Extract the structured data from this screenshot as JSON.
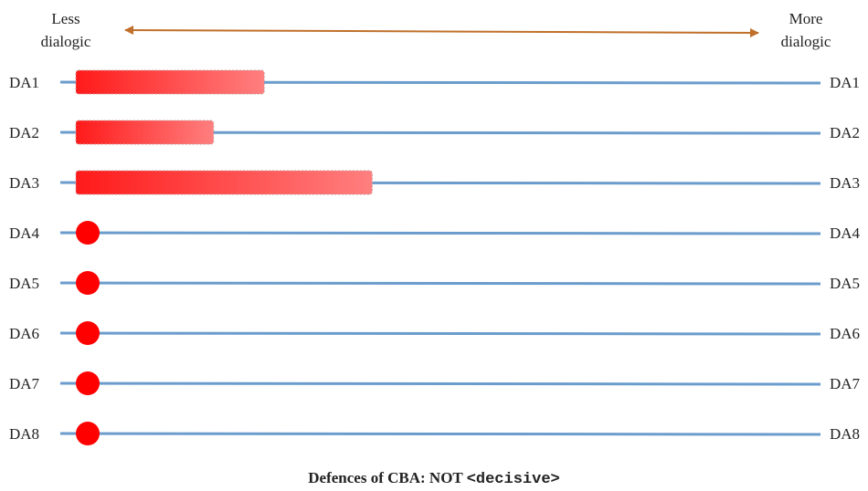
{
  "scale": {
    "left_label_line1": "Less",
    "left_label_line2": "dialogic",
    "right_label_line1": "More",
    "right_label_line2": "dialogic"
  },
  "colors": {
    "arrow": "#c0702a",
    "line": "#6b9ccc",
    "bar_dark": "#ff1a1a",
    "bar_light": "#ff7f7f",
    "dot": "#ff0000"
  },
  "rows": [
    {
      "label": "DA1",
      "marker": "bar",
      "extent": 0.253
    },
    {
      "label": "DA2",
      "marker": "bar",
      "extent": 0.185
    },
    {
      "label": "DA3",
      "marker": "bar",
      "extent": 0.398
    },
    {
      "label": "DA4",
      "marker": "dot",
      "extent": 0
    },
    {
      "label": "DA5",
      "marker": "dot",
      "extent": 0
    },
    {
      "label": "DA6",
      "marker": "dot",
      "extent": 0
    },
    {
      "label": "DA7",
      "marker": "dot",
      "extent": 0
    },
    {
      "label": "DA8",
      "marker": "dot",
      "extent": 0
    }
  ],
  "caption": {
    "prefix": "Defences of CBA: NOT ",
    "code": "<decisive>"
  }
}
